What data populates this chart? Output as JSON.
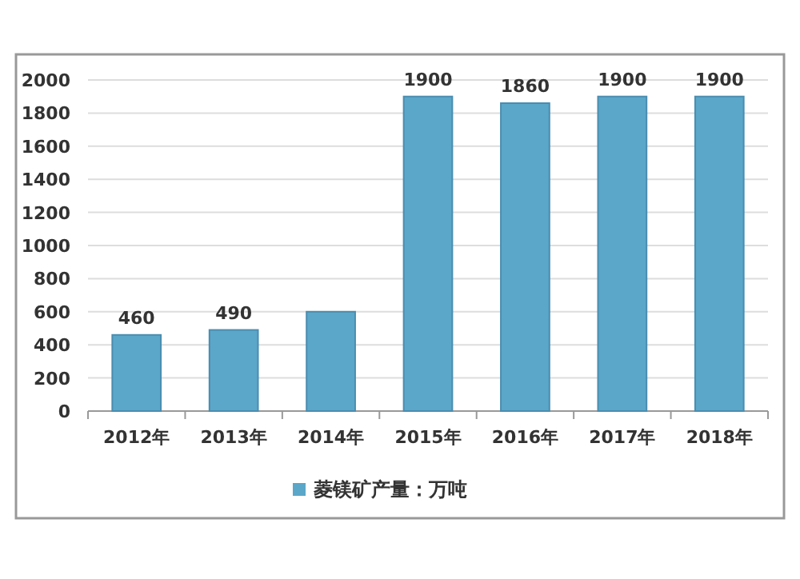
{
  "chart_data": {
    "type": "bar",
    "categories": [
      "2012年",
      "2013年",
      "2014年",
      "2015年",
      "2016年",
      "2017年",
      "2018年"
    ],
    "series": [
      {
        "name": "菱镁矿产量：万吨",
        "color": "#5ba7c9",
        "values": [
          460,
          490,
          600,
          1900,
          1860,
          1900,
          1900
        ],
        "value_labels": [
          "460",
          "490",
          null,
          "1900",
          "1860",
          "1900",
          "1900"
        ]
      }
    ],
    "ylim": [
      0,
      2000
    ],
    "yticks": [
      0,
      200,
      400,
      600,
      800,
      1000,
      1200,
      1400,
      1600,
      1800,
      2000
    ],
    "grid": "y",
    "legend": "bottom"
  }
}
